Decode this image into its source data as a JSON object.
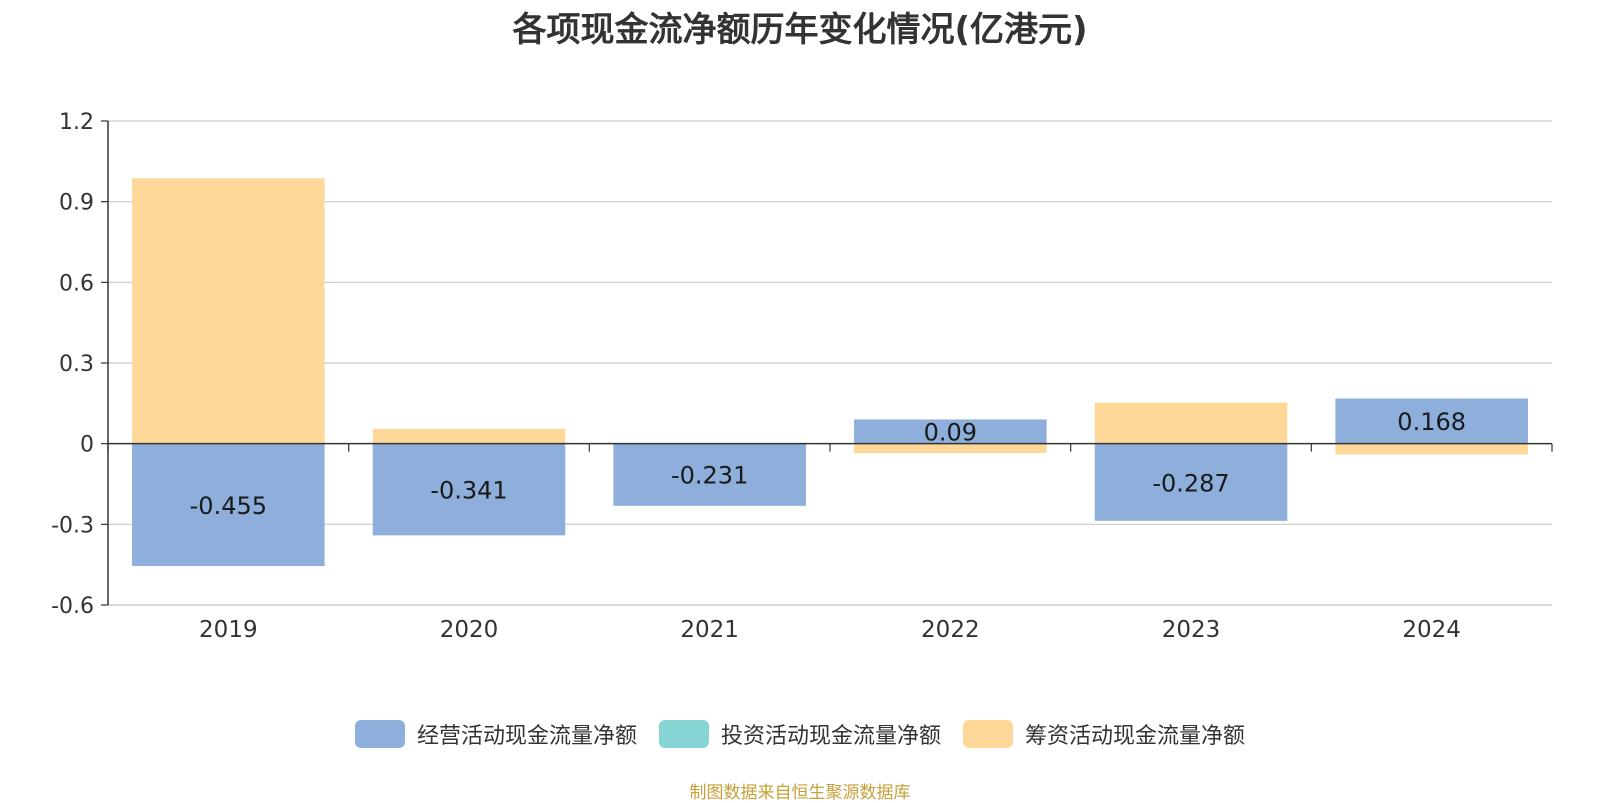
{
  "chart_data": {
    "type": "bar",
    "title": "各项现金流净额历年变化情况(亿港元)",
    "categories": [
      "2019",
      "2020",
      "2021",
      "2022",
      "2023",
      "2024"
    ],
    "series": [
      {
        "name": "经营活动现金流量净额",
        "color": "#8eaedb",
        "values": [
          -0.455,
          -0.341,
          -0.231,
          0.09,
          -0.287,
          0.168
        ],
        "labels": [
          "-0.455",
          "-0.341",
          "-0.231",
          "0.09",
          "-0.287",
          "0.168"
        ]
      },
      {
        "name": "投资活动现金流量净额",
        "color": "#86d4d4",
        "values": [
          0,
          0,
          0,
          0,
          0,
          0
        ]
      },
      {
        "name": "筹资活动现金流量净额",
        "color": "#fdd898",
        "values": [
          0.987,
          0.055,
          0,
          -0.035,
          0.153,
          -0.04
        ]
      }
    ],
    "yticks": [
      "1.2",
      "0.9",
      "0.6",
      "0.3",
      "0",
      "-0.3",
      "-0.6"
    ],
    "ylim": [
      -0.6,
      1.2
    ],
    "grid": true,
    "legend_position": "bottom"
  },
  "footer": {
    "source": "制图数据来自恒生聚源数据库"
  }
}
